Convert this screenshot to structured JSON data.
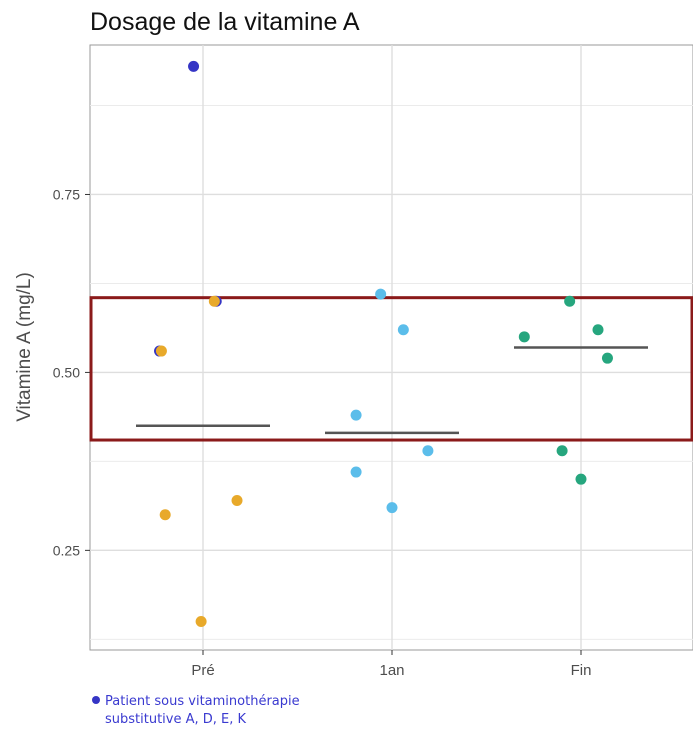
{
  "chart_data": {
    "type": "scatter",
    "title": "Dosage de la vitamine A",
    "ylabel": "Vitamine A (mg/L)",
    "xlabel": "",
    "categories": [
      "Pré",
      "1an",
      "Fin"
    ],
    "ylim": [
      0.11,
      0.96
    ],
    "yticks": [
      0.25,
      0.5,
      0.75
    ],
    "ytick_labels": [
      "0.25",
      "0.50",
      "0.75"
    ],
    "grid": true,
    "points": [
      {
        "category": "Pré",
        "jitter": -0.05,
        "y": 0.93,
        "group": "supplemented"
      },
      {
        "category": "Pré",
        "jitter": 0.07,
        "y": 0.6,
        "group": "supplemented"
      },
      {
        "category": "Pré",
        "jitter": -0.23,
        "y": 0.53,
        "group": "supplemented"
      },
      {
        "category": "Pré",
        "jitter": -0.22,
        "y": 0.53,
        "group": "standard"
      },
      {
        "category": "Pré",
        "jitter": 0.06,
        "y": 0.6,
        "group": "standard"
      },
      {
        "category": "Pré",
        "jitter": -0.2,
        "y": 0.3,
        "group": "standard"
      },
      {
        "category": "Pré",
        "jitter": 0.18,
        "y": 0.32,
        "group": "standard"
      },
      {
        "category": "Pré",
        "jitter": -0.01,
        "y": 0.15,
        "group": "standard"
      },
      {
        "category": "1an",
        "jitter": -0.06,
        "y": 0.61,
        "group": "standard"
      },
      {
        "category": "1an",
        "jitter": 0.06,
        "y": 0.56,
        "group": "standard"
      },
      {
        "category": "1an",
        "jitter": -0.19,
        "y": 0.44,
        "group": "standard"
      },
      {
        "category": "1an",
        "jitter": 0.19,
        "y": 0.39,
        "group": "standard"
      },
      {
        "category": "1an",
        "jitter": -0.19,
        "y": 0.36,
        "group": "standard"
      },
      {
        "category": "1an",
        "jitter": 0.0,
        "y": 0.31,
        "group": "standard"
      },
      {
        "category": "Fin",
        "jitter": -0.3,
        "y": 0.55,
        "group": "standard"
      },
      {
        "category": "Fin",
        "jitter": -0.06,
        "y": 0.6,
        "group": "standard"
      },
      {
        "category": "Fin",
        "jitter": 0.09,
        "y": 0.56,
        "group": "standard"
      },
      {
        "category": "Fin",
        "jitter": 0.14,
        "y": 0.52,
        "group": "standard"
      },
      {
        "category": "Fin",
        "jitter": -0.1,
        "y": 0.39,
        "group": "standard"
      },
      {
        "category": "Fin",
        "jitter": 0.0,
        "y": 0.35,
        "group": "standard"
      }
    ],
    "means": [
      {
        "category": "Pré",
        "y": 0.425
      },
      {
        "category": "1an",
        "y": 0.415
      },
      {
        "category": "Fin",
        "y": 0.535
      }
    ],
    "highlight_range": [
      0.405,
      0.605
    ],
    "colors": {
      "Pré": "#E8A92A",
      "1an": "#5BBDEA",
      "Fin": "#26A67E",
      "supplemented": "#3535C5",
      "mean_line": "#555555",
      "highlight": "#8B1A1A"
    },
    "note": {
      "line1": "Patient sous vitaminothérapie",
      "line2": "substitutive A, D, E, K",
      "color": "#3535C5"
    }
  }
}
